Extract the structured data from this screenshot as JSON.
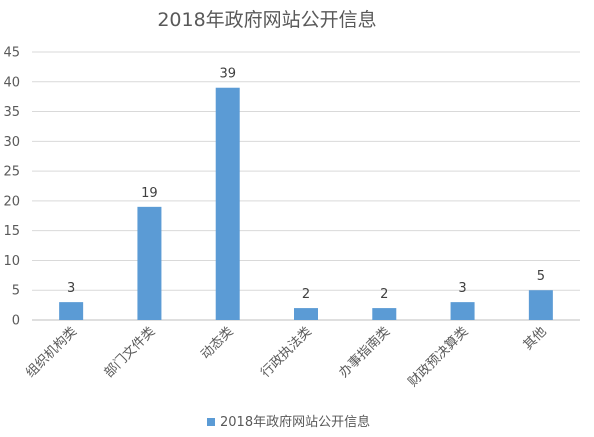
{
  "chart_data": {
    "type": "bar",
    "title": "2018年政府网站公开信息",
    "categories": [
      "组织机构类",
      "部门文件类",
      "动态类",
      "行政执法类",
      "办事指南类",
      "财政预决算类",
      "其他"
    ],
    "series": [
      {
        "name": "2018年政府网站公开信息",
        "values": [
          3,
          19,
          39,
          2,
          2,
          3,
          5
        ],
        "color": "#5b9bd5"
      }
    ],
    "ylim": [
      0,
      45
    ],
    "yticks": [
      0,
      5,
      10,
      15,
      20,
      25,
      30,
      35,
      40,
      45
    ],
    "grid": true,
    "legend": "bottom",
    "data_labels": true
  }
}
